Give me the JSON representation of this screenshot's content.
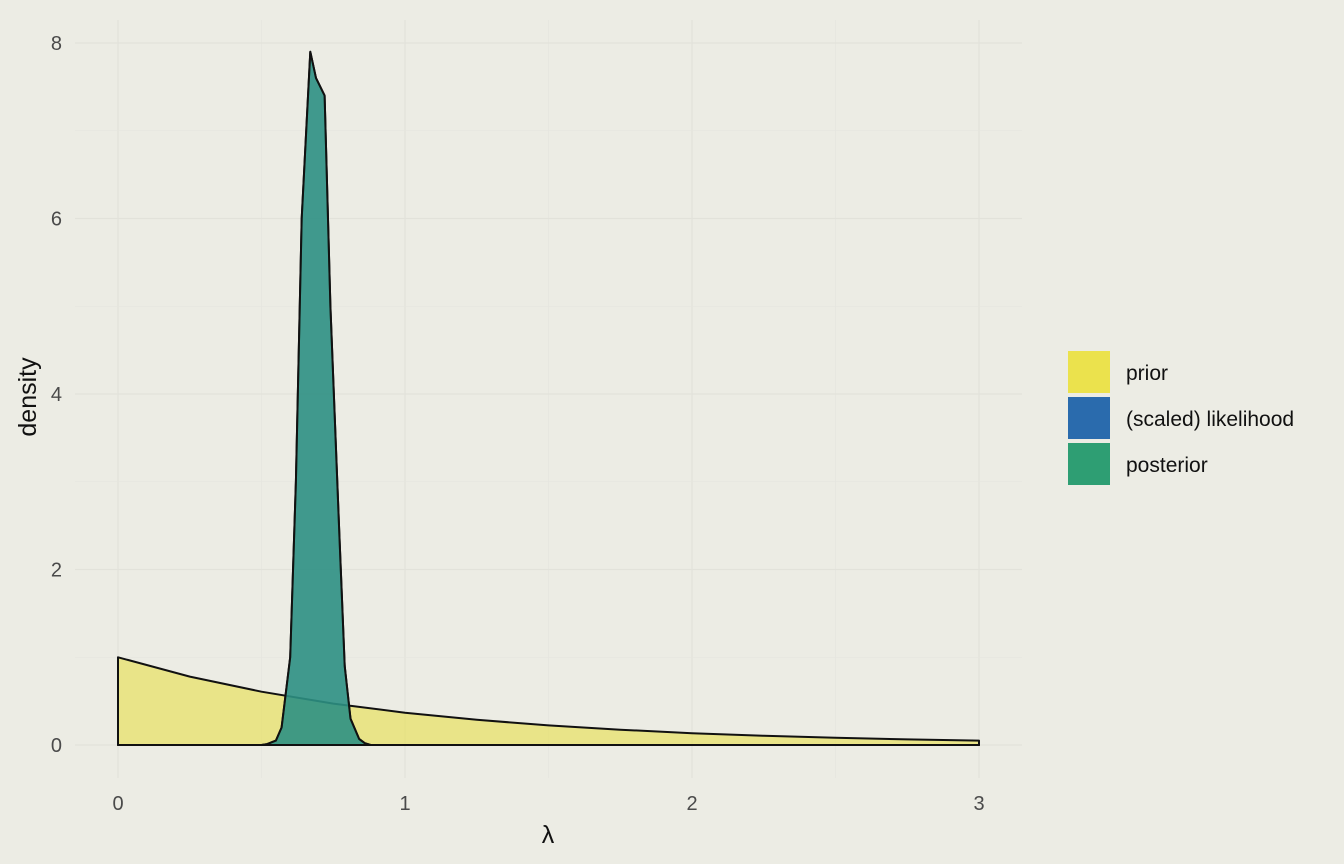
{
  "chart_data": {
    "type": "area",
    "title": "",
    "xlabel": "λ",
    "ylabel": "density",
    "xlim": [
      0,
      3
    ],
    "ylim": [
      0,
      8
    ],
    "x_ticks": [
      0,
      1,
      2,
      3
    ],
    "y_ticks": [
      0,
      2,
      4,
      6,
      8
    ],
    "grid": true,
    "legend_position": "right",
    "series": [
      {
        "name": "prior",
        "color": "#E8E04B",
        "fill_opacity": 0.6,
        "x": [
          0,
          0.25,
          0.5,
          0.75,
          1,
          1.25,
          1.5,
          1.75,
          2,
          2.25,
          2.5,
          2.75,
          3
        ],
        "y": [
          1,
          0.78,
          0.607,
          0.472,
          0.368,
          0.287,
          0.223,
          0.174,
          0.135,
          0.105,
          0.082,
          0.064,
          0.05
        ]
      },
      {
        "name": "(scaled) likelihood",
        "color": "#2A6BAD",
        "fill_opacity": 0.7,
        "x": [
          0,
          0.5,
          0.52,
          0.55,
          0.57,
          0.6,
          0.62,
          0.64,
          0.67,
          0.69,
          0.72,
          0.74,
          0.77,
          0.79,
          0.81,
          0.84,
          0.86,
          0.88,
          0.9,
          0.95,
          1,
          3
        ],
        "y": [
          0,
          0,
          0.01,
          0.05,
          0.2,
          1.0,
          3.0,
          6.0,
          7.9,
          7.6,
          7.4,
          5.0,
          2.5,
          0.9,
          0.3,
          0.07,
          0.02,
          0,
          0,
          0,
          0,
          0
        ]
      },
      {
        "name": "posterior",
        "color": "#2E9E73",
        "fill_opacity": 0.65,
        "x": [
          0,
          0.5,
          0.52,
          0.55,
          0.57,
          0.6,
          0.62,
          0.64,
          0.67,
          0.69,
          0.72,
          0.74,
          0.77,
          0.79,
          0.81,
          0.84,
          0.86,
          0.88,
          0.9,
          0.95,
          1,
          3
        ],
        "y": [
          0,
          0,
          0.01,
          0.05,
          0.2,
          1.0,
          3.0,
          6.0,
          7.9,
          7.6,
          7.4,
          5.0,
          2.5,
          0.9,
          0.3,
          0.07,
          0.02,
          0,
          0,
          0,
          0,
          0
        ]
      }
    ]
  }
}
